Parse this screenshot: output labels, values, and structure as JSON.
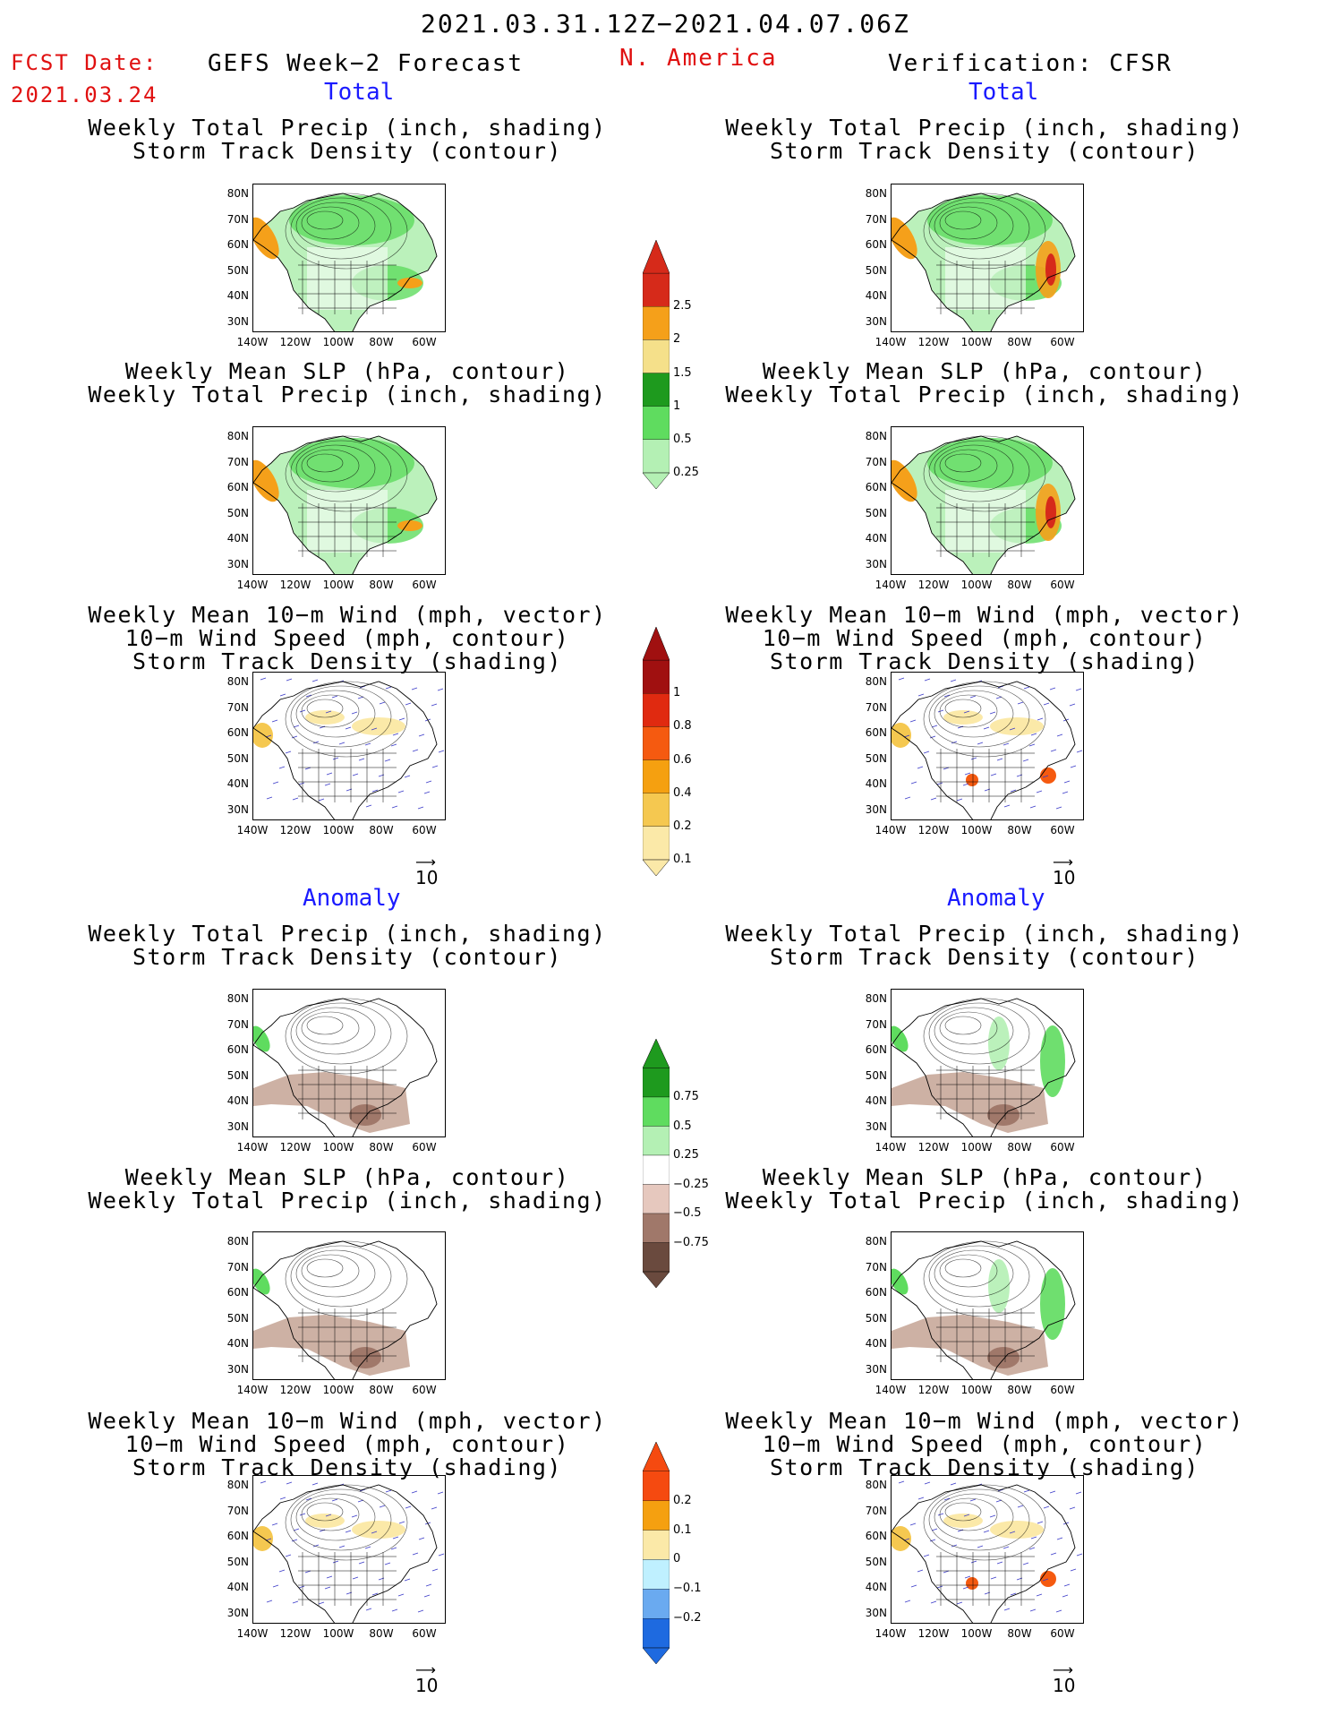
{
  "header": {
    "date_range": "2021.03.31.12Z−2021.04.07.06Z",
    "fcst_label": "FCST Date:",
    "fcst_date": "2021.03.24",
    "model": "GEFS Week−2 Forecast",
    "region": "N. America",
    "verification": "Verification: CFSR"
  },
  "sections": {
    "total": "Total",
    "anomaly": "Anomaly"
  },
  "titles": {
    "precip_track": [
      "Weekly Total Precip (inch, shading)",
      "Storm Track Density (contour)"
    ],
    "slp_precip": [
      "Weekly Mean SLP (hPa, contour)",
      "Weekly Total Precip (inch, shading)"
    ],
    "wind_track": [
      "Weekly Mean 10−m Wind (mph, vector)",
      "10−m Wind Speed (mph, contour)",
      "Storm Track Density (shading)"
    ]
  },
  "axes": {
    "lat": [
      "80N",
      "70N",
      "60N",
      "50N",
      "40N",
      "30N"
    ],
    "lon": [
      "140W",
      "120W",
      "100W",
      "80W",
      "60W"
    ]
  },
  "vector_ref": "10",
  "colorbars": {
    "precip_total": {
      "labels": [
        "2.5",
        "2",
        "1.5",
        "1",
        "0.5",
        "0.25"
      ],
      "colors": [
        "#d62a1a",
        "#f5a01a",
        "#f5e08a",
        "#1e9a1e",
        "#5fdc5f",
        "#b4f0b4"
      ]
    },
    "track_total": {
      "labels": [
        "1",
        "0.8",
        "0.6",
        "0.4",
        "0.2",
        "0.1"
      ],
      "colors": [
        "#a01010",
        "#e02a10",
        "#f55a10",
        "#f5a010",
        "#f5c850",
        "#fbe9a8"
      ]
    },
    "precip_anom": {
      "labels": [
        "0.75",
        "0.5",
        "0.25",
        "−0.25",
        "−0.5",
        "−0.75"
      ],
      "colors": [
        "#1e9a1e",
        "#5fdc5f",
        "#b4f0b4",
        "#ffffff",
        "#e6c8be",
        "#a0786a",
        "#6a4a3e"
      ]
    },
    "track_anom": {
      "labels": [
        "0.2",
        "0.1",
        "0",
        "−0.1",
        "−0.2"
      ],
      "colors": [
        "#f54a10",
        "#f5a010",
        "#fbe9a8",
        "#bff0ff",
        "#6aaaf0",
        "#1e6ae0"
      ]
    }
  },
  "colors": {
    "land_ocean_bg": "#ffffff",
    "precip_low": "#b4f0b4",
    "precip_mid": "#5fdc5f",
    "precip_high": "#f5a01a",
    "dry_anom": "#c8a89a",
    "wind_vector": "#3a3ac8",
    "title_red": "#e01010",
    "title_blue": "#1a1aff"
  }
}
